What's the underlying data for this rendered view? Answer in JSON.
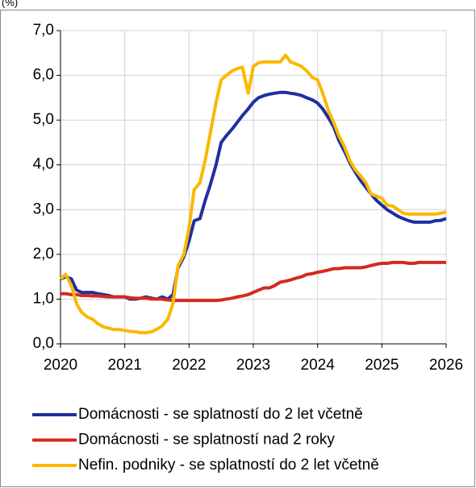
{
  "chart_data": {
    "type": "line",
    "unit": "(%)",
    "x": [
      2020,
      2020.08,
      2020.17,
      2020.25,
      2020.33,
      2020.42,
      2020.5,
      2020.58,
      2020.67,
      2020.75,
      2020.83,
      2020.92,
      2021,
      2021.08,
      2021.17,
      2021.25,
      2021.33,
      2021.42,
      2021.5,
      2021.58,
      2021.67,
      2021.75,
      2021.83,
      2021.92,
      2022,
      2022.08,
      2022.17,
      2022.25,
      2022.33,
      2022.42,
      2022.5,
      2022.58,
      2022.67,
      2022.75,
      2022.83,
      2022.92,
      2023,
      2023.08,
      2023.17,
      2023.25,
      2023.33,
      2023.42,
      2023.5,
      2023.58,
      2023.67,
      2023.75,
      2023.83,
      2023.92,
      2024,
      2024.08,
      2024.17,
      2024.25,
      2024.33,
      2024.42,
      2024.5,
      2024.58,
      2024.67,
      2024.75,
      2024.83,
      2024.92,
      2025,
      2025.08,
      2025.17,
      2025.25,
      2025.33,
      2025.42,
      2025.5,
      2025.58,
      2025.67,
      2025.75,
      2025.83,
      2025.92,
      2026
    ],
    "series": [
      {
        "name": "Domácnosti - se splatností do 2 let včetně",
        "color": "#1f2fa0",
        "values": [
          1.45,
          1.5,
          1.45,
          1.2,
          1.15,
          1.15,
          1.15,
          1.12,
          1.1,
          1.08,
          1.05,
          1.05,
          1.05,
          1.0,
          1.0,
          1.02,
          1.05,
          1.02,
          1.0,
          1.05,
          1.0,
          1.1,
          1.7,
          1.95,
          2.3,
          2.75,
          2.8,
          3.2,
          3.55,
          4.0,
          4.5,
          4.65,
          4.8,
          4.95,
          5.1,
          5.25,
          5.4,
          5.5,
          5.55,
          5.58,
          5.6,
          5.62,
          5.62,
          5.6,
          5.58,
          5.55,
          5.5,
          5.45,
          5.38,
          5.25,
          5.05,
          4.85,
          4.55,
          4.3,
          4.05,
          3.85,
          3.65,
          3.5,
          3.35,
          3.2,
          3.1,
          3.0,
          2.92,
          2.85,
          2.8,
          2.75,
          2.72,
          2.72,
          2.72,
          2.72,
          2.75,
          2.76,
          2.8
        ]
      },
      {
        "name": "Domácnosti - se splatností nad 2 roky",
        "color": "#d42a1e",
        "values": [
          1.12,
          1.12,
          1.1,
          1.1,
          1.08,
          1.08,
          1.07,
          1.07,
          1.06,
          1.05,
          1.05,
          1.05,
          1.05,
          1.03,
          1.02,
          1.02,
          1.02,
          1.0,
          1.0,
          1.0,
          0.98,
          0.97,
          0.97,
          0.97,
          0.97,
          0.97,
          0.97,
          0.97,
          0.97,
          0.97,
          0.98,
          1.0,
          1.02,
          1.05,
          1.07,
          1.1,
          1.15,
          1.2,
          1.25,
          1.25,
          1.3,
          1.38,
          1.4,
          1.43,
          1.47,
          1.5,
          1.55,
          1.57,
          1.6,
          1.62,
          1.65,
          1.68,
          1.68,
          1.7,
          1.7,
          1.7,
          1.7,
          1.72,
          1.75,
          1.78,
          1.8,
          1.8,
          1.82,
          1.82,
          1.82,
          1.8,
          1.8,
          1.82,
          1.82,
          1.82,
          1.82,
          1.82,
          1.82
        ]
      },
      {
        "name": "Nefin. podniky - se splatností do 2 let včetně",
        "color": "#fbb800",
        "values": [
          1.45,
          1.55,
          1.3,
          0.9,
          0.7,
          0.6,
          0.55,
          0.45,
          0.38,
          0.35,
          0.32,
          0.32,
          0.3,
          0.28,
          0.27,
          0.25,
          0.25,
          0.27,
          0.33,
          0.4,
          0.55,
          0.9,
          1.75,
          2.0,
          2.6,
          3.45,
          3.6,
          4.1,
          4.7,
          5.4,
          5.9,
          6.0,
          6.1,
          6.15,
          6.18,
          5.6,
          6.2,
          6.28,
          6.3,
          6.3,
          6.3,
          6.3,
          6.45,
          6.3,
          6.25,
          6.2,
          6.1,
          5.95,
          5.9,
          5.6,
          5.2,
          4.95,
          4.65,
          4.4,
          4.1,
          3.9,
          3.75,
          3.6,
          3.35,
          3.3,
          3.25,
          3.1,
          3.08,
          3.0,
          2.92,
          2.9,
          2.9,
          2.9,
          2.9,
          2.9,
          2.9,
          2.92,
          2.95
        ]
      }
    ],
    "xlim": [
      2020,
      2026
    ],
    "xticks": [
      2020,
      2021,
      2022,
      2023,
      2024,
      2025,
      2026
    ],
    "ylim": [
      0,
      7
    ],
    "yticks": [
      {
        "value": 0,
        "label": "0,0"
      },
      {
        "value": 1,
        "label": "1,0"
      },
      {
        "value": 2,
        "label": "2,0"
      },
      {
        "value": 3,
        "label": "3,0"
      },
      {
        "value": 4,
        "label": "4,0"
      },
      {
        "value": 5,
        "label": "5,0"
      },
      {
        "value": 6,
        "label": "6,0"
      },
      {
        "value": 7,
        "label": "7,0"
      }
    ],
    "grid": true,
    "legend": "bottom"
  }
}
